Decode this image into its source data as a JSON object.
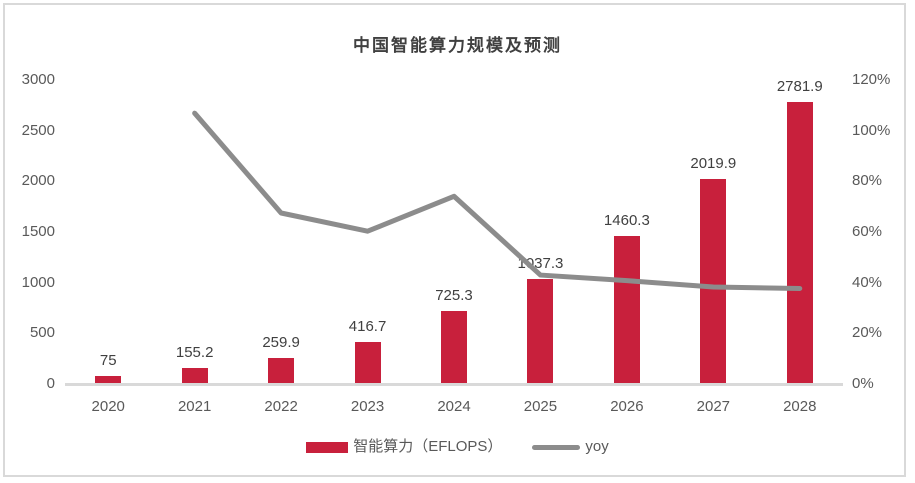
{
  "chart_data": {
    "type": "bar",
    "combo": "bar+line",
    "title": "中国智能算力规模及预测",
    "categories": [
      "2020",
      "2021",
      "2022",
      "2023",
      "2024",
      "2025",
      "2026",
      "2027",
      "2028"
    ],
    "series": [
      {
        "name": "智能算力（EFLOPS）",
        "type": "bar",
        "axis": "left",
        "color": "#C8203C",
        "values": [
          75,
          155.2,
          259.9,
          416.7,
          725.3,
          1037.3,
          1460.3,
          2019.9,
          2781.9
        ],
        "data_labels": [
          "75",
          "155.2",
          "259.9",
          "416.7",
          "725.3",
          "1037.3",
          "1460.3",
          "2019.9",
          "2781.9"
        ]
      },
      {
        "name": "yoy",
        "type": "line",
        "axis": "right",
        "color": "#8C8C8C",
        "values": [
          null,
          106.9,
          67.5,
          60.3,
          74.1,
          43.0,
          40.8,
          38.3,
          37.7
        ]
      }
    ],
    "left_axis": {
      "min": 0,
      "max": 3000,
      "ticks": [
        "0",
        "500",
        "1000",
        "1500",
        "2000",
        "2500",
        "3000"
      ]
    },
    "right_axis": {
      "min": 0,
      "max": 120,
      "unit": "%",
      "ticks": [
        "0%",
        "20%",
        "40%",
        "60%",
        "80%",
        "100%",
        "120%"
      ]
    },
    "grid": false,
    "legend_position": "bottom"
  },
  "colors": {
    "bar": "#C8203C",
    "line": "#8C8C8C",
    "axis_text": "#595959",
    "data_label_text": "#404040",
    "title_text": "#404040",
    "axis_line": "#D9D9D9",
    "frame_border": "#D9D9D9",
    "background": "#FFFFFF"
  }
}
